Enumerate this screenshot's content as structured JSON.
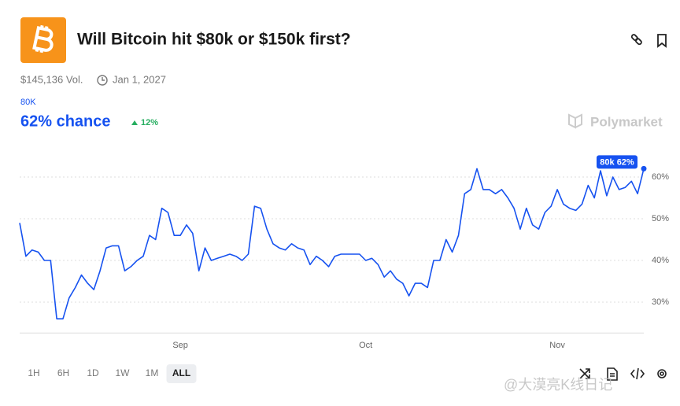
{
  "header": {
    "title": "Will Bitcoin hit $80k or $150k first?",
    "volume": "$145,136 Vol.",
    "end_date": "Jan 1, 2027",
    "outcome": "80K",
    "chance": "62% chance",
    "change": "12%",
    "brand": "Polymarket"
  },
  "chart_data": {
    "type": "line",
    "categories": [
      null,
      null,
      null,
      null,
      null,
      null,
      null,
      null,
      null,
      null,
      null,
      null,
      null,
      null,
      null,
      null,
      null,
      null,
      null,
      null,
      null,
      null,
      null,
      null,
      null,
      null,
      "Sep",
      null,
      null,
      null,
      null,
      null,
      null,
      null,
      null,
      null,
      null,
      null,
      null,
      null,
      null,
      null,
      null,
      null,
      null,
      null,
      null,
      null,
      null,
      null,
      null,
      null,
      null,
      null,
      null,
      null,
      "Oct",
      null,
      null,
      null,
      null,
      null,
      null,
      null,
      null,
      null,
      null,
      null,
      null,
      null,
      null,
      null,
      null,
      null,
      null,
      null,
      null,
      null,
      null,
      null,
      null,
      null,
      null,
      null,
      null,
      null,
      null,
      "Nov",
      null,
      null,
      null,
      null,
      null,
      null,
      null,
      null,
      null,
      null,
      null,
      null,
      null,
      null
    ],
    "series": [
      {
        "name": "80k",
        "color": "#1652f0",
        "values": [
          49,
          41,
          42.5,
          42,
          40,
          40,
          26,
          26,
          31,
          33.5,
          36.5,
          34.5,
          33,
          37.5,
          43,
          43.5,
          43.5,
          37.5,
          38.5,
          40,
          41,
          46,
          45,
          52.5,
          51.5,
          46,
          46,
          48.5,
          46.5,
          37.5,
          43,
          40,
          40.5,
          41,
          41.5,
          41,
          40,
          41.5,
          53,
          52.5,
          47.5,
          44,
          43,
          42.5,
          44,
          43,
          42.5,
          39,
          41,
          40,
          38.5,
          41,
          41.5,
          41.5,
          41.5,
          41.5,
          40,
          40.5,
          39,
          36,
          37.5,
          35.5,
          34.5,
          31.5,
          34.5,
          34.5,
          33.5,
          40,
          40,
          45,
          42,
          46,
          56,
          57,
          62,
          57,
          57,
          56,
          57,
          55,
          52.5,
          47.5,
          52.5,
          48.5,
          47.5,
          51.5,
          53,
          57,
          53.5,
          52.5,
          52,
          53.5,
          58,
          55,
          61.5,
          55.5,
          60,
          57,
          57.5,
          59,
          56,
          62
        ]
      }
    ],
    "last_label": "80k 62%",
    "ylim": [
      22.6,
      66.6
    ],
    "yticks": [
      {
        "value": 30,
        "label": "30%"
      },
      {
        "value": 40,
        "label": "40%"
      },
      {
        "value": 50,
        "label": "50%"
      },
      {
        "value": 60,
        "label": "60%"
      }
    ],
    "grid": true
  },
  "ranges": [
    "1H",
    "6H",
    "1D",
    "1W",
    "1M",
    "ALL"
  ],
  "selected_range": "ALL",
  "watermark": "@大漠亮K线日记"
}
